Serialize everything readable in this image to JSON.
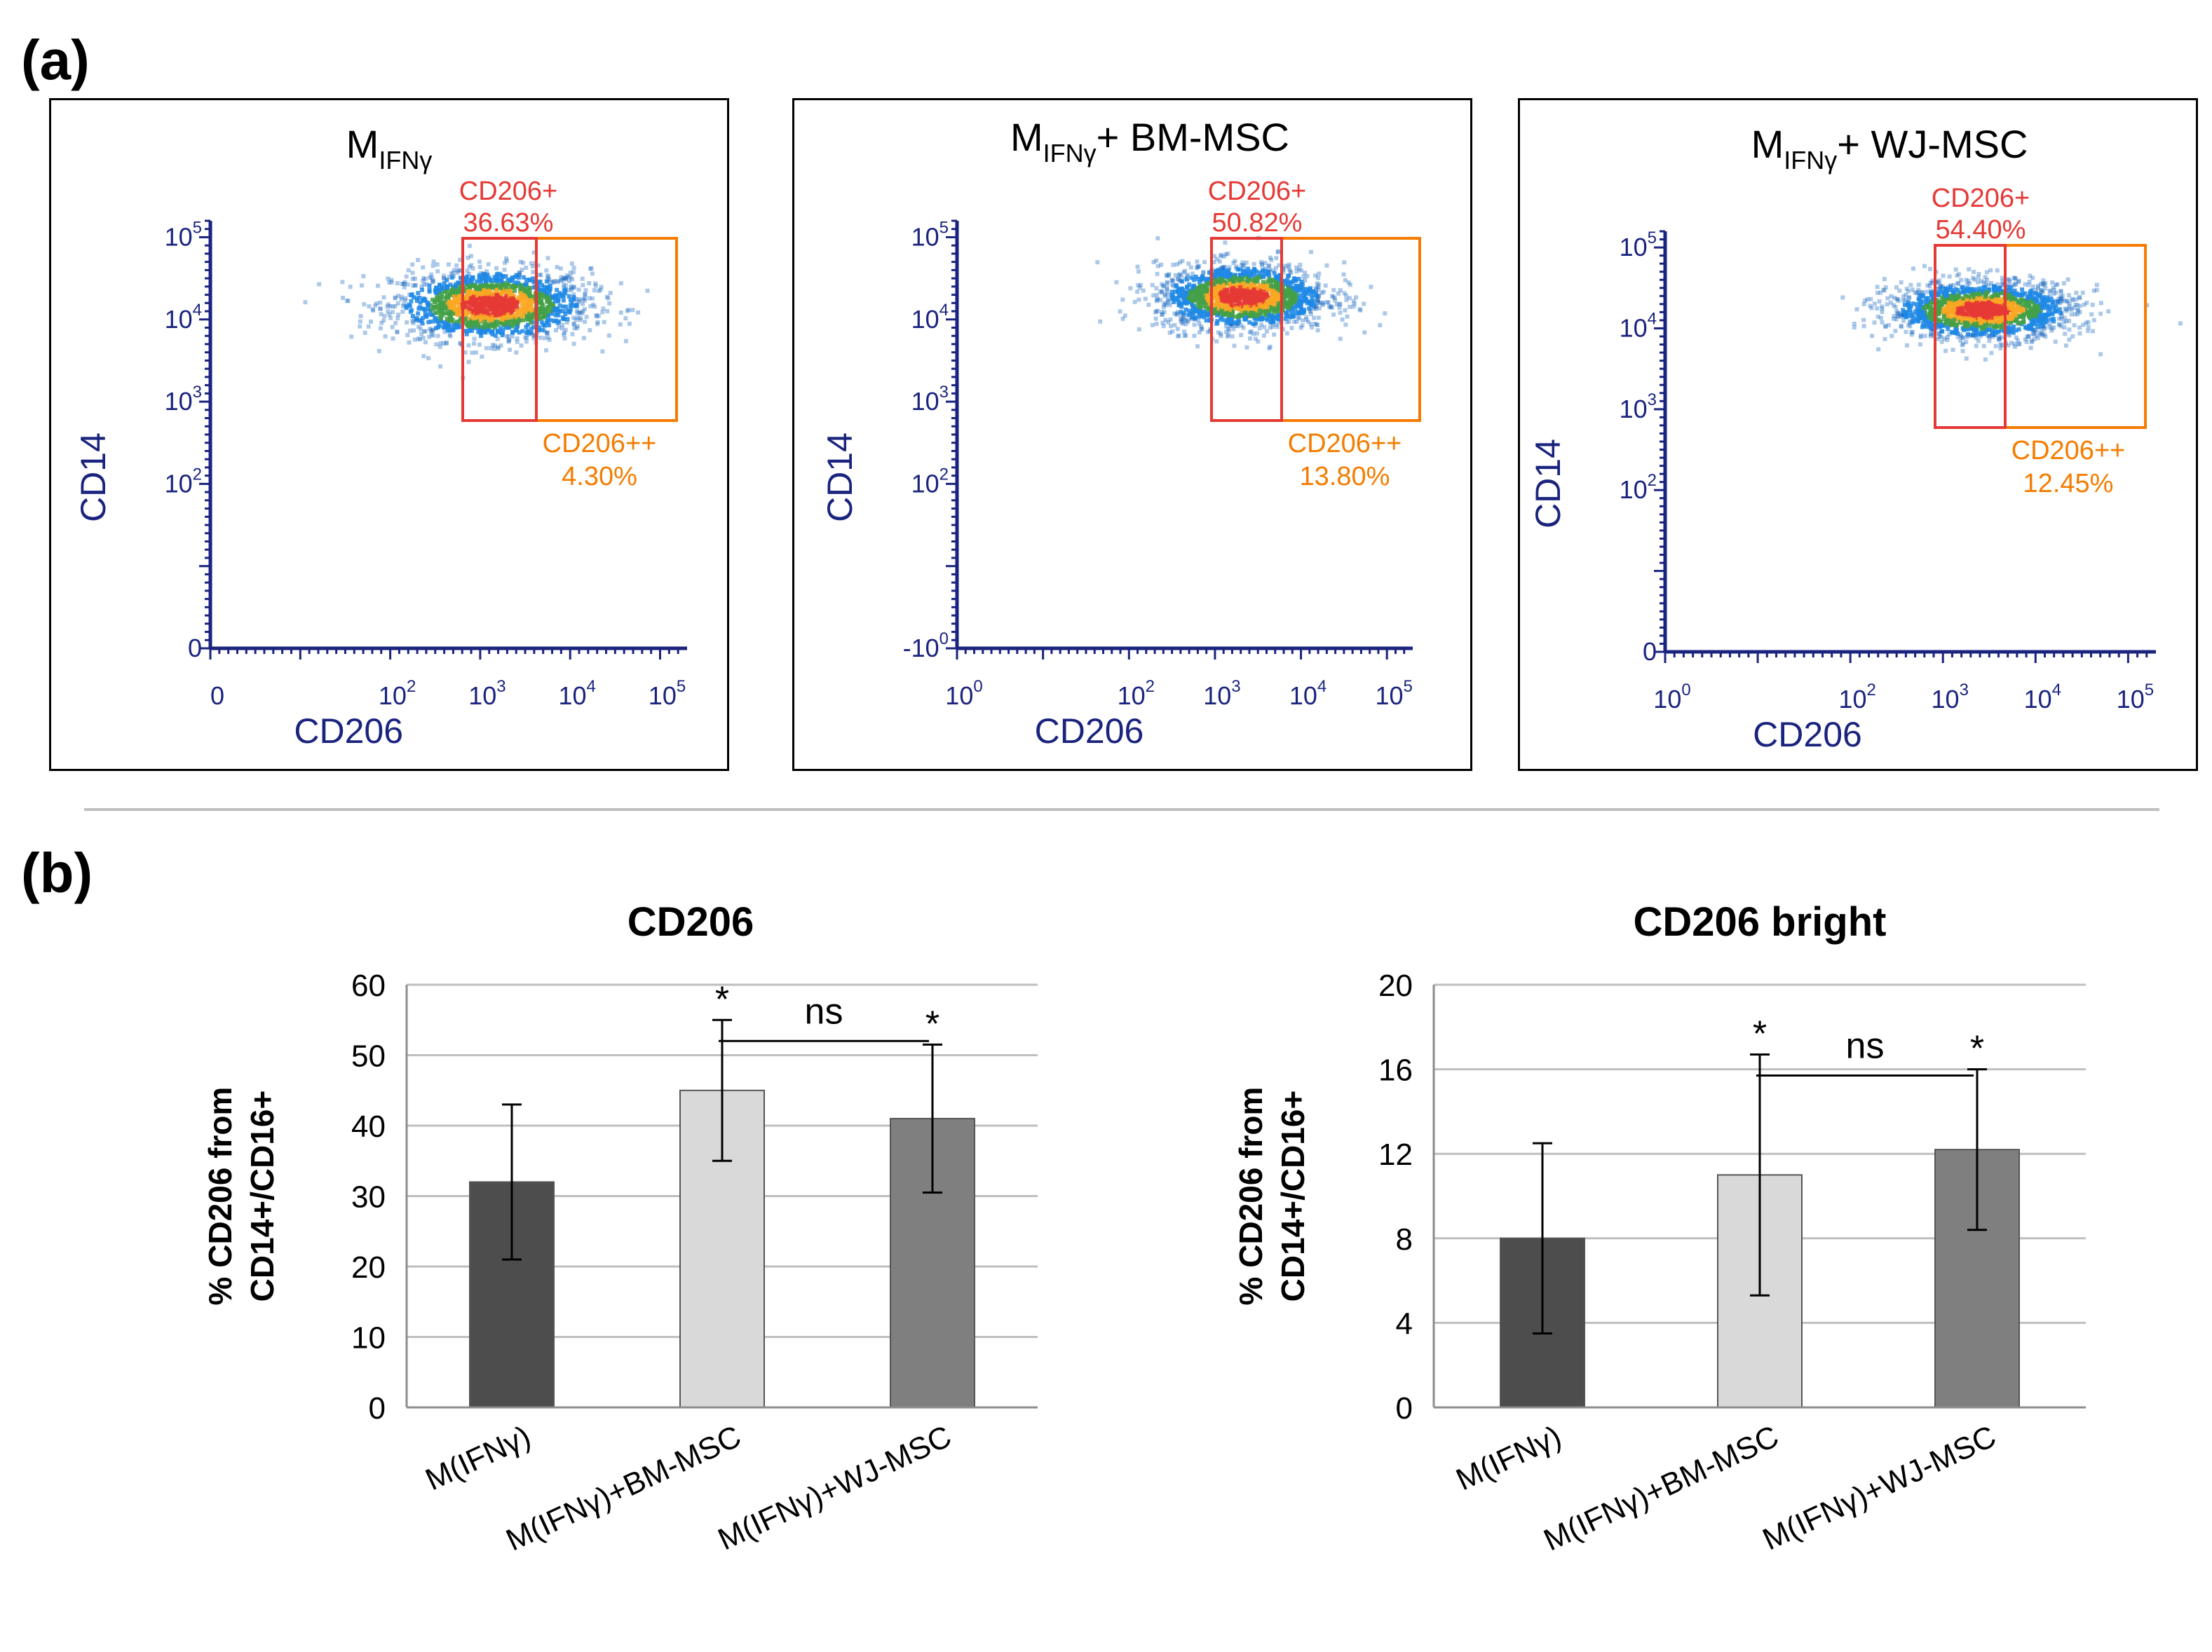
{
  "panel_labels": {
    "a": "(a)",
    "b": "(b)"
  },
  "colors": {
    "axis": "#1a237e",
    "gate_inner": "#e53935",
    "gate_outer": "#f57c00",
    "bar_dark": "#4d4d4d",
    "bar_light": "#d9d9d9",
    "bar_mid": "#7f7f7f",
    "grid": "#bfbfbf"
  },
  "chart_data": [
    {
      "type": "scatter",
      "title_main": "M",
      "title_sub": "IFNγ",
      "title_suffix": "",
      "xlabel": "CD206",
      "ylabel": "CD14",
      "x_ticks": [
        "0",
        "10",
        "10",
        "10",
        "10"
      ],
      "x_tick_exps": [
        "",
        "2",
        "3",
        "4",
        "5"
      ],
      "y_ticks": [
        "0",
        "10",
        "10",
        "10",
        "10"
      ],
      "y_tick_exps": [
        "",
        "2",
        "3",
        "4",
        "5"
      ],
      "gate_inner": {
        "label": "CD206+",
        "value": "36.63%"
      },
      "gate_outer": {
        "label": "CD206++",
        "value": "4.30%"
      },
      "cloud": {
        "x_center_log": 3.1,
        "y_center_log": 4.2,
        "x_spread": 0.55,
        "y_spread": 0.22
      }
    },
    {
      "type": "scatter",
      "title_main": "M",
      "title_sub": "IFNγ",
      "title_suffix": "+ BM-MSC",
      "xlabel": "CD206",
      "ylabel": "CD14",
      "x_ticks": [
        "10",
        "10",
        "10",
        "10",
        "10"
      ],
      "x_tick_exps": [
        "0",
        "2",
        "3",
        "4",
        "5"
      ],
      "y_ticks": [
        "-10",
        "10",
        "10",
        "10",
        "10"
      ],
      "y_tick_exps": [
        "0",
        "2",
        "3",
        "4",
        "5"
      ],
      "gate_inner": {
        "label": "CD206+",
        "value": "50.82%"
      },
      "gate_outer": {
        "label": "CD206++",
        "value": "13.80%"
      },
      "cloud": {
        "x_center_log": 3.3,
        "y_center_log": 4.3,
        "x_spread": 0.5,
        "y_spread": 0.2
      }
    },
    {
      "type": "scatter",
      "title_main": "M",
      "title_sub": "IFNγ",
      "title_suffix": "+ WJ-MSC",
      "xlabel": "CD206",
      "ylabel": "CD14",
      "x_ticks": [
        "10",
        "10",
        "10",
        "10",
        "10"
      ],
      "x_tick_exps": [
        "0",
        "2",
        "3",
        "4",
        "5"
      ],
      "y_ticks": [
        "0",
        "10",
        "10",
        "10",
        "10"
      ],
      "y_tick_exps": [
        "",
        "2",
        "3",
        "4",
        "5"
      ],
      "gate_inner": {
        "label": "CD206+",
        "value": "54.40%"
      },
      "gate_outer": {
        "label": "CD206++",
        "value": "12.45%"
      },
      "cloud": {
        "x_center_log": 3.4,
        "y_center_log": 4.25,
        "x_spread": 0.5,
        "y_spread": 0.18
      }
    },
    {
      "type": "bar",
      "title": "CD206",
      "ylabel_line1": "% CD206 from",
      "ylabel_line2": "CD14+/CD16+",
      "categories": [
        "M(IFNγ)",
        "M(IFNγ)+BM-MSC",
        "M(IFNγ)+WJ-MSC"
      ],
      "values": [
        32,
        45,
        41
      ],
      "errors": [
        11,
        10,
        10.5
      ],
      "ylim": [
        0,
        60
      ],
      "yticks": [
        "0",
        "10",
        "20",
        "30",
        "40",
        "50",
        "60"
      ],
      "yticks_values": [
        0,
        10,
        20,
        30,
        40,
        50,
        60
      ],
      "significance": [
        "",
        "*",
        "*"
      ],
      "comparison_label": "ns"
    },
    {
      "type": "bar",
      "title": "CD206 bright",
      "ylabel_line1": "% CD206 from",
      "ylabel_line2": "CD14+/CD16+",
      "categories": [
        "M(IFNγ)",
        "M(IFNγ)+BM-MSC",
        "M(IFNγ)+WJ-MSC"
      ],
      "values": [
        8,
        11,
        12.2
      ],
      "errors": [
        4.5,
        5.7,
        3.8
      ],
      "ylim": [
        0,
        20
      ],
      "yticks": [
        "0",
        "4",
        "8",
        "12",
        "16",
        "20"
      ],
      "yticks_values": [
        0,
        4,
        8,
        12,
        16,
        20
      ],
      "significance": [
        "",
        "*",
        "*"
      ],
      "comparison_label": "ns"
    }
  ]
}
